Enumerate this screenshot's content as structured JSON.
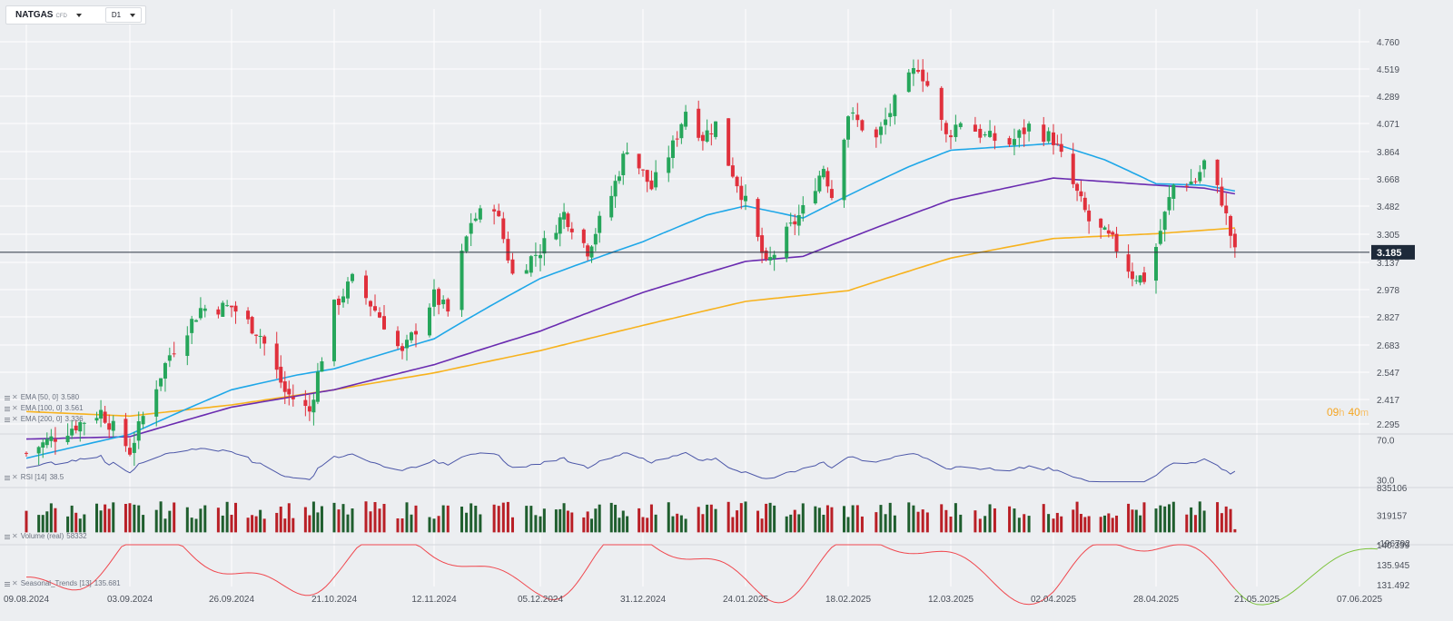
{
  "toolbar": {
    "symbol": "NATGAS",
    "symbol_type": "CFD",
    "interval": "D1"
  },
  "indicators": {
    "ema50": {
      "label": "EMA [50, 0]",
      "value": "3.580",
      "color": "#1ea7e8"
    },
    "ema100": {
      "label": "EMA [100, 0]",
      "value": "3.561",
      "color": "#6a2bb0"
    },
    "ema200": {
      "label": "EMA [200, 0]",
      "value": "3.336",
      "color": "#f7b21d"
    },
    "rsi": {
      "label": "RSI [14]",
      "value": "38.5",
      "color": "#4c57a8"
    },
    "volume": {
      "label": "Volume (real)",
      "value": "58332"
    },
    "seasonal": {
      "label": "Seasonal_Trends [13]",
      "value": "135.681",
      "past_color": "#f0474e",
      "future_color": "#7cc33c"
    }
  },
  "current_price": {
    "label": "3.185",
    "value": 3.185,
    "color": "#1e2a3a"
  },
  "countdown": {
    "hours": "09",
    "hours_unit": "h",
    "minutes": "40",
    "minutes_unit": "m"
  },
  "colors": {
    "up": "#26a65b",
    "down": "#e0303c",
    "vol_up": "#1f5e2e",
    "vol_down": "#b91f26"
  },
  "chart_data": {
    "type": "candlestick",
    "price_axis": {
      "ticks": [
        "4.760",
        "4.519",
        "4.289",
        "4.071",
        "3.864",
        "3.668",
        "3.482",
        "3.305",
        "3.137",
        "2.978",
        "2.827",
        "2.683",
        "2.547",
        "2.417",
        "2.295"
      ],
      "scale": "log"
    },
    "x_ticks": [
      "09.08.2024",
      "03.09.2024",
      "26.09.2024",
      "21.10.2024",
      "12.11.2024",
      "05.12.2024",
      "31.12.2024",
      "24.01.2025",
      "18.02.2025",
      "12.03.2025",
      "02.04.2025",
      "28.04.2025",
      "21.05.2025",
      "07.06.2025"
    ],
    "price_anchors": [
      {
        "date": "09.08.2024",
        "close": 2.17
      },
      {
        "date": "27.08.2024",
        "close": 2.35
      },
      {
        "date": "03.09.2024",
        "close": 2.18
      },
      {
        "date": "12.09.2024",
        "close": 2.62
      },
      {
        "date": "19.09.2024",
        "close": 2.86
      },
      {
        "date": "26.09.2024",
        "close": 2.87
      },
      {
        "date": "03.10.2024",
        "close": 2.72
      },
      {
        "date": "09.10.2024",
        "close": 2.44
      },
      {
        "date": "15.10.2024",
        "close": 2.35
      },
      {
        "date": "21.10.2024",
        "close": 2.87
      },
      {
        "date": "25.10.2024",
        "close": 3.02
      },
      {
        "date": "31.10.2024",
        "close": 2.82
      },
      {
        "date": "05.11.2024",
        "close": 2.62
      },
      {
        "date": "12.11.2024",
        "close": 2.93
      },
      {
        "date": "15.11.2024",
        "close": 2.84
      },
      {
        "date": "20.11.2024",
        "close": 3.38
      },
      {
        "date": "25.11.2024",
        "close": 3.49
      },
      {
        "date": "29.11.2024",
        "close": 3.05
      },
      {
        "date": "05.12.2024",
        "close": 3.2
      },
      {
        "date": "11.12.2024",
        "close": 3.43
      },
      {
        "date": "17.12.2024",
        "close": 3.2
      },
      {
        "date": "23.12.2024",
        "close": 3.55
      },
      {
        "date": "27.12.2024",
        "close": 3.9
      },
      {
        "date": "02.01.2025",
        "close": 3.6
      },
      {
        "date": "07.01.2025",
        "close": 3.9
      },
      {
        "date": "10.01.2025",
        "close": 4.18
      },
      {
        "date": "14.01.2025",
        "close": 3.97
      },
      {
        "date": "17.01.2025",
        "close": 4.07
      },
      {
        "date": "20.01.2025",
        "close": 3.78
      },
      {
        "date": "24.01.2025",
        "close": 3.5
      },
      {
        "date": "29.01.2025",
        "close": 3.1
      },
      {
        "date": "03.02.2025",
        "close": 3.3
      },
      {
        "date": "07.02.2025",
        "close": 3.45
      },
      {
        "date": "12.02.2025",
        "close": 3.75
      },
      {
        "date": "14.02.2025",
        "close": 3.55
      },
      {
        "date": "18.02.2025",
        "close": 4.15
      },
      {
        "date": "24.02.2025",
        "close": 3.95
      },
      {
        "date": "28.02.2025",
        "close": 4.24
      },
      {
        "date": "05.03.2025",
        "close": 4.55
      },
      {
        "date": "07.03.2025",
        "close": 4.38
      },
      {
        "date": "11.03.2025",
        "close": 3.97
      },
      {
        "date": "14.03.2025",
        "close": 4.1
      },
      {
        "date": "19.03.2025",
        "close": 3.97
      },
      {
        "date": "24.03.2025",
        "close": 3.92
      },
      {
        "date": "28.03.2025",
        "close": 4.05
      },
      {
        "date": "02.04.2025",
        "close": 3.95
      },
      {
        "date": "07.04.2025",
        "close": 3.62
      },
      {
        "date": "11.04.2025",
        "close": 3.38
      },
      {
        "date": "17.04.2025",
        "close": 3.25
      },
      {
        "date": "22.04.2025",
        "close": 3.05
      },
      {
        "date": "25.04.2025",
        "close": 3.03
      },
      {
        "date": "28.04.2025",
        "close": 3.22
      },
      {
        "date": "02.05.2025",
        "close": 3.62
      },
      {
        "date": "07.05.2025",
        "close": 3.65
      },
      {
        "date": "09.05.2025",
        "close": 3.78
      },
      {
        "date": "13.05.2025",
        "close": 3.52
      },
      {
        "date": "16.05.2025",
        "close": 3.18
      }
    ],
    "ema_anchors": {
      "ema50": [
        {
          "date": "09.08.2024",
          "value": 2.15
        },
        {
          "date": "03.09.2024",
          "value": 2.25
        },
        {
          "date": "26.09.2024",
          "value": 2.45
        },
        {
          "date": "12.10.2024",
          "value": 2.52
        },
        {
          "date": "21.10.2024",
          "value": 2.55
        },
        {
          "date": "12.11.2024",
          "value": 2.7
        },
        {
          "date": "05.12.2024",
          "value": 3.03
        },
        {
          "date": "31.12.2024",
          "value": 3.25
        },
        {
          "date": "15.01.2025",
          "value": 3.42
        },
        {
          "date": "24.01.2025",
          "value": 3.48
        },
        {
          "date": "07.02.2025",
          "value": 3.4
        },
        {
          "date": "18.02.2025",
          "value": 3.55
        },
        {
          "date": "03.03.2025",
          "value": 3.75
        },
        {
          "date": "12.03.2025",
          "value": 3.87
        },
        {
          "date": "02.04.2025",
          "value": 3.92
        },
        {
          "date": "15.04.2025",
          "value": 3.8
        },
        {
          "date": "28.04.2025",
          "value": 3.63
        },
        {
          "date": "09.05.2025",
          "value": 3.62
        },
        {
          "date": "16.05.2025",
          "value": 3.58
        }
      ],
      "ema100": [
        {
          "date": "09.08.2024",
          "value": 2.23
        },
        {
          "date": "03.09.2024",
          "value": 2.24
        },
        {
          "date": "26.09.2024",
          "value": 2.37
        },
        {
          "date": "21.10.2024",
          "value": 2.45
        },
        {
          "date": "12.11.2024",
          "value": 2.57
        },
        {
          "date": "05.12.2024",
          "value": 2.74
        },
        {
          "date": "31.12.2024",
          "value": 2.95
        },
        {
          "date": "24.01.2025",
          "value": 3.13
        },
        {
          "date": "07.02.2025",
          "value": 3.16
        },
        {
          "date": "18.02.2025",
          "value": 3.27
        },
        {
          "date": "12.03.2025",
          "value": 3.52
        },
        {
          "date": "02.04.2025",
          "value": 3.67
        },
        {
          "date": "28.04.2025",
          "value": 3.62
        },
        {
          "date": "09.05.2025",
          "value": 3.6
        },
        {
          "date": "16.05.2025",
          "value": 3.561
        }
      ],
      "ema200": [
        {
          "date": "09.08.2024",
          "value": 2.35
        },
        {
          "date": "03.09.2024",
          "value": 2.33
        },
        {
          "date": "26.09.2024",
          "value": 2.38
        },
        {
          "date": "21.10.2024",
          "value": 2.45
        },
        {
          "date": "12.11.2024",
          "value": 2.53
        },
        {
          "date": "05.12.2024",
          "value": 2.64
        },
        {
          "date": "31.12.2024",
          "value": 2.77
        },
        {
          "date": "24.01.2025",
          "value": 2.9
        },
        {
          "date": "18.02.2025",
          "value": 2.96
        },
        {
          "date": "12.03.2025",
          "value": 3.15
        },
        {
          "date": "02.04.2025",
          "value": 3.27
        },
        {
          "date": "28.04.2025",
          "value": 3.3
        },
        {
          "date": "16.05.2025",
          "value": 3.336
        }
      ]
    },
    "rsi": {
      "ticks": [
        "70.0",
        "30.0"
      ],
      "range": [
        24,
        76
      ],
      "last": 38.5
    },
    "volume": {
      "ticks": [
        "835106",
        "319157",
        "-196792"
      ],
      "range": [
        -196792,
        835106
      ],
      "last": 58332
    },
    "seasonal": {
      "ticks": [
        "140.399",
        "135.945",
        "131.492"
      ],
      "range": [
        131.492,
        140.399
      ],
      "last": 135.681
    }
  }
}
